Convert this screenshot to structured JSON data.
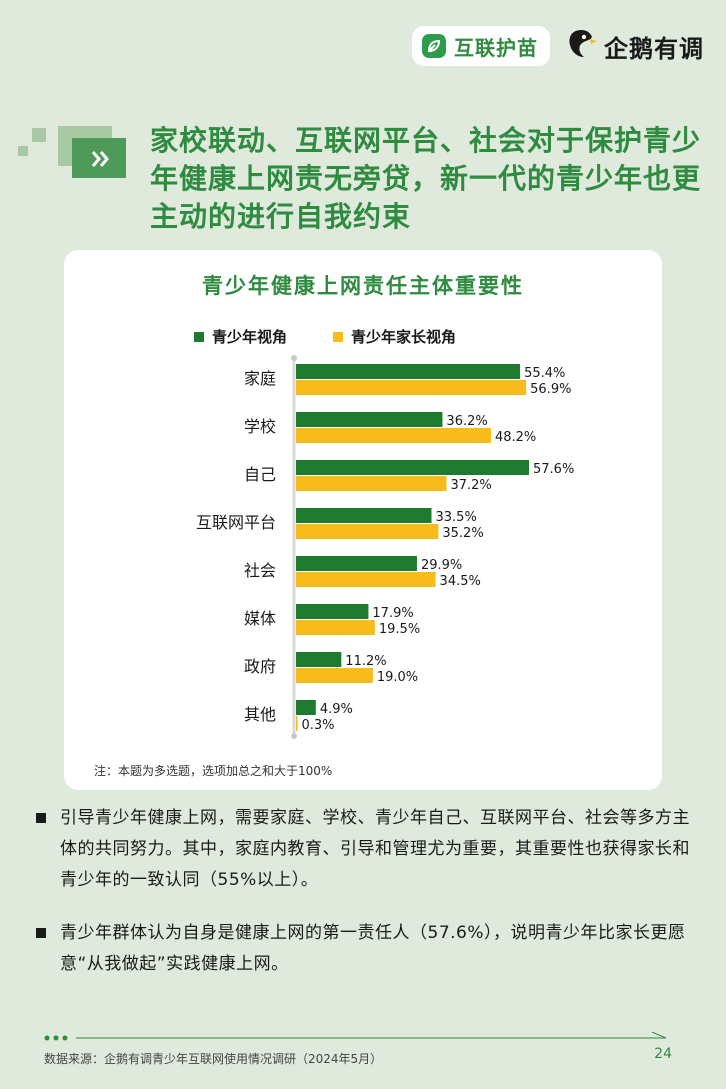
{
  "brand": {
    "logo_primary": "互联护苗",
    "logo_secondary": "企鹅有调"
  },
  "headline": "家校联动、互联网平台、社会对于保护青少年健康上网责无旁贷，新一代的青少年也更主动的进行自我约束",
  "chart_data": {
    "type": "bar",
    "orientation": "horizontal",
    "title": "青少年健康上网责任主体重要性",
    "categories": [
      "家庭",
      "学校",
      "自己",
      "互联网平台",
      "社会",
      "媒体",
      "政府",
      "其他"
    ],
    "series": [
      {
        "name": "青少年视角",
        "color": "#1e7a2e",
        "values": [
          55.4,
          36.2,
          57.6,
          33.5,
          29.9,
          17.9,
          11.2,
          4.9
        ],
        "labels": [
          "55.4%",
          "36.2%",
          "57.6%",
          "33.5%",
          "29.9%",
          "17.9%",
          "11.2%",
          "4.9%"
        ]
      },
      {
        "name": "青少年家长视角",
        "color": "#f7bb1b",
        "values": [
          56.9,
          48.2,
          37.2,
          35.2,
          34.5,
          19.5,
          19.0,
          0.3
        ],
        "labels": [
          "56.9%",
          "48.2%",
          "37.2%",
          "35.2%",
          "34.5%",
          "19.5%",
          "19.0%",
          "0.3%"
        ]
      }
    ],
    "xlim": [
      0,
      60
    ],
    "grid": false,
    "legend_position": "top"
  },
  "note": "注：本题为多选题，选项加总之和大于100%",
  "bullets": [
    "引导青少年健康上网，需要家庭、学校、青少年自己、互联网平台、社会等多方主体的共同努力。其中，家庭内教育、引导和管理尤为重要，其重要性也获得家长和青少年的一致认同（55%以上）。",
    "青少年群体认为自身是健康上网的第一责任人（57.6%），说明青少年比家长更愿意“从我做起”实践健康上网。"
  ],
  "footer": {
    "source": "数据来源：企鹅有调青少年互联网使用情况调研（2024年5月）",
    "page": "24"
  },
  "colors": {
    "brand_green": "#2e8b3f",
    "background": "#dfeadd",
    "series_green": "#1e7a2e",
    "series_yellow": "#f7bb1b"
  }
}
